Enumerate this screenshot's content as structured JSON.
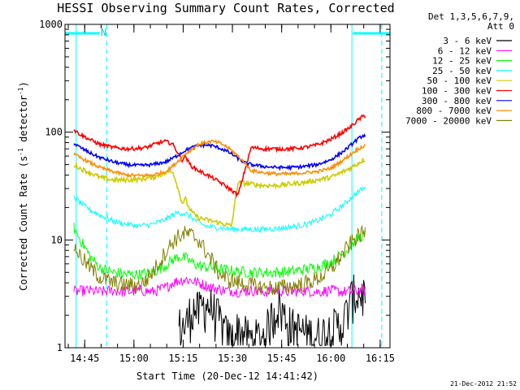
{
  "chart_data": {
    "type": "line",
    "title": "HESSI Observing Summary Count Rates, Corrected",
    "xlabel": "Start Time (20-Dec-12 14:41:42)",
    "ylabel_main": "Corrected Count Rate (s",
    "ylabel_sup1": "-1",
    "ylabel_mid": " detector",
    "ylabel_sup2": "-1",
    "ylabel_end": ")",
    "y_scale": "log",
    "ylim": [
      1,
      1000
    ],
    "xlim_minutes": [
      -2.7,
      96.3
    ],
    "y_ticks": [
      1,
      10,
      100,
      1000
    ],
    "y_tick_labels": [
      "1",
      "10",
      "100",
      "1000"
    ],
    "x_ticks_minutes": [
      3.3,
      18.3,
      33.3,
      48.3,
      63.3,
      78.3,
      93.3
    ],
    "x_tick_labels": [
      "14:45",
      "15:00",
      "15:15",
      "15:30",
      "15:45",
      "16:00",
      "16:15"
    ],
    "legend_header": [
      "Det 1,3,5,6,7,9,",
      "Att 0"
    ],
    "legend_position": "right",
    "night_marker_label": "N",
    "saa_night_lines_minutes": [
      0.7,
      10.0,
      84.7,
      93.8
    ],
    "attenuator_bars_minutes": [
      [
        -2.7,
        7.9
      ],
      [
        85.0,
        96.3
      ]
    ],
    "data_gap_minutes": [
      39.2,
      54.9
    ],
    "series": [
      {
        "name": "3 - 6 keV",
        "color": "#000000",
        "x": [
          34,
          36,
          38,
          40,
          42,
          44,
          46,
          48,
          50,
          54,
          58,
          62,
          66,
          70,
          74,
          78,
          82,
          85
        ],
        "y": [
          1.6,
          2.4,
          2.2,
          2.6,
          2.4,
          1.9,
          1.4,
          1.2,
          1.5,
          1.2,
          1.3,
          2.6,
          1.6,
          1.4,
          1.3,
          1.5,
          1.7,
          3.2
        ]
      },
      {
        "name": "6 - 12 keV",
        "color": "#ff00ff",
        "x": [
          0,
          4,
          8,
          12,
          16,
          20,
          24,
          28,
          30,
          32,
          34,
          36,
          38,
          40,
          42,
          44,
          46,
          48,
          50,
          54,
          58,
          62,
          66,
          70,
          74,
          78,
          82,
          88
        ],
        "y": [
          3.3,
          3.4,
          3.3,
          3.4,
          3.3,
          3.4,
          3.3,
          3.6,
          4.0,
          4.2,
          4.3,
          4.2,
          4.0,
          3.8,
          3.6,
          3.5,
          3.4,
          3.4,
          3.3,
          3.4,
          3.3,
          3.4,
          3.3,
          3.4,
          3.3,
          3.4,
          3.3,
          3.4
        ]
      },
      {
        "name": "12 - 25 keV",
        "color": "#00ff00",
        "x": [
          0,
          2,
          5,
          8,
          12,
          16,
          20,
          24,
          28,
          30,
          32,
          34,
          36,
          38,
          40,
          42,
          44,
          46,
          48,
          50,
          54,
          58,
          62,
          66,
          70,
          74,
          78,
          80,
          82,
          84,
          86,
          88
        ],
        "y": [
          13,
          10,
          7,
          5.5,
          5,
          4.8,
          4.8,
          5,
          5.8,
          6.5,
          7.0,
          6.8,
          6.2,
          5.8,
          5.6,
          5.6,
          5.4,
          5.3,
          5.2,
          5.1,
          5.0,
          5.0,
          5.0,
          5.1,
          5.3,
          5.6,
          6.2,
          6.8,
          7.5,
          8.5,
          10,
          11
        ]
      },
      {
        "name": "25 - 50 keV",
        "color": "#00ffff",
        "x": [
          0,
          2,
          5,
          8,
          12,
          16,
          20,
          24,
          28,
          30,
          32,
          34,
          36,
          38,
          40,
          42,
          44,
          46,
          48,
          50,
          54,
          58,
          62,
          66,
          70,
          74,
          78,
          80,
          82,
          84,
          86,
          88
        ],
        "y": [
          25,
          22,
          19,
          17,
          15,
          14,
          13.5,
          14,
          15.5,
          17,
          18,
          17.5,
          16,
          14.5,
          13.5,
          13.2,
          13,
          12.8,
          12.6,
          12.6,
          12.5,
          12.6,
          12.8,
          13.2,
          13.8,
          15,
          17,
          19,
          21,
          24,
          27,
          30
        ]
      },
      {
        "name": "50 - 100 keV",
        "color": "#cccc00",
        "x": [
          0,
          2,
          5,
          8,
          12,
          16,
          20,
          24,
          28,
          30,
          31,
          32,
          33,
          34,
          35,
          36,
          38,
          40,
          42,
          44,
          46,
          48,
          50,
          54,
          58,
          62,
          66,
          70,
          74,
          78,
          80,
          82,
          84,
          86,
          88
        ],
        "y": [
          50,
          46,
          42,
          38,
          36,
          36,
          36.5,
          38,
          42,
          44,
          36,
          28,
          22,
          24,
          20,
          18,
          16,
          15.5,
          15,
          14.5,
          14,
          13.5,
          34,
          33,
          32,
          32,
          33,
          34,
          36,
          38,
          40,
          43,
          46,
          50,
          55
        ]
      },
      {
        "name": "100 - 300 keV",
        "color": "#ff0000",
        "x": [
          0,
          2,
          5,
          8,
          12,
          16,
          20,
          22,
          24,
          26,
          28,
          30,
          32,
          33,
          34,
          35,
          36,
          38,
          40,
          42,
          44,
          46,
          48,
          50,
          54,
          58,
          62,
          66,
          70,
          74,
          78,
          80,
          82,
          84,
          86,
          88
        ],
        "y": [
          105,
          95,
          85,
          77,
          72,
          70,
          71,
          72,
          76,
          80,
          82,
          78,
          62,
          55,
          60,
          52,
          48,
          44,
          41,
          38,
          35,
          32,
          29,
          26,
          72,
          70,
          70,
          70,
          72,
          76,
          85,
          92,
          100,
          110,
          125,
          140
        ]
      },
      {
        "name": "300 - 800 keV",
        "color": "#0000ff",
        "x": [
          0,
          2,
          5,
          8,
          12,
          16,
          20,
          24,
          28,
          30,
          32,
          34,
          36,
          38,
          40,
          42,
          44,
          46,
          48,
          50,
          52,
          54,
          58,
          62,
          66,
          70,
          74,
          78,
          80,
          82,
          84,
          86,
          88
        ],
        "y": [
          78,
          72,
          64,
          58,
          53,
          50,
          49,
          50,
          53,
          57,
          62,
          68,
          72,
          75,
          76,
          75,
          72,
          68,
          63,
          57,
          52,
          50,
          48,
          47,
          47,
          48,
          50,
          55,
          60,
          66,
          74,
          84,
          93
        ]
      },
      {
        "name": "800 - 7000 keV",
        "color": "#ff8c00",
        "x": [
          0,
          2,
          5,
          8,
          12,
          16,
          20,
          24,
          28,
          30,
          32,
          34,
          36,
          38,
          40,
          42,
          44,
          46,
          48,
          50,
          52,
          54,
          58,
          62,
          66,
          70,
          74,
          78,
          80,
          82,
          84,
          86,
          88
        ],
        "y": [
          62,
          58,
          52,
          47,
          43,
          40,
          39.5,
          40,
          43,
          48,
          55,
          63,
          70,
          77,
          80,
          82,
          80,
          75,
          68,
          60,
          52,
          44,
          42,
          41,
          41,
          42,
          43,
          46,
          50,
          55,
          61,
          68,
          74
        ]
      },
      {
        "name": "7000 - 20000 keV",
        "color": "#808000",
        "x": [
          0,
          2,
          5,
          8,
          12,
          16,
          20,
          22,
          24,
          26,
          28,
          30,
          32,
          34,
          36,
          38,
          40,
          42,
          44,
          46,
          48,
          50,
          54,
          58,
          62,
          66,
          70,
          74,
          78,
          80,
          82,
          84,
          86,
          88
        ],
        "y": [
          9,
          7,
          5.5,
          4.5,
          4.0,
          3.8,
          3.8,
          4.2,
          5,
          6.2,
          7.8,
          9.5,
          10.8,
          11.5,
          11,
          10,
          8,
          6.5,
          5.0,
          4.5,
          4.2,
          4.0,
          3.8,
          3.6,
          3.6,
          3.7,
          3.9,
          4.3,
          5.2,
          6.2,
          7.5,
          9,
          10.5,
          11.5
        ]
      }
    ]
  },
  "footer_date": "21-Dec-2012 21:52"
}
